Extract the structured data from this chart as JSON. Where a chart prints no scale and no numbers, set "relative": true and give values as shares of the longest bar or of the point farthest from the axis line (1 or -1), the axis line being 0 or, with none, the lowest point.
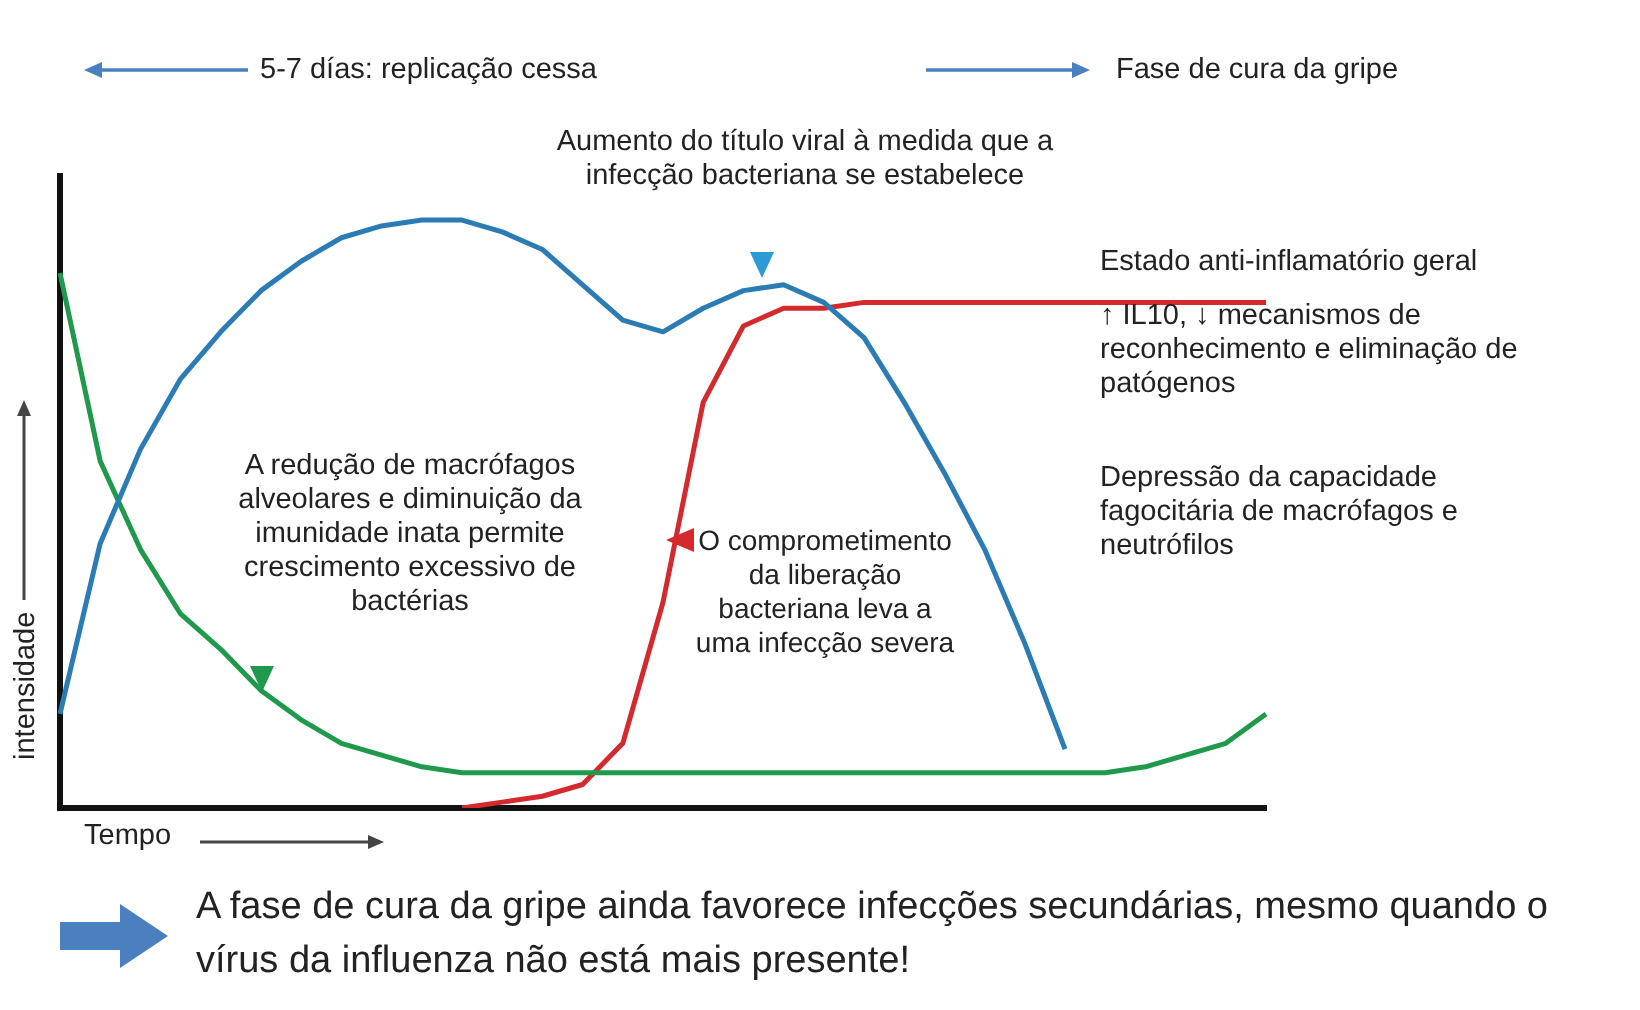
{
  "chart_data": {
    "type": "line",
    "relative": true,
    "xlabel": "Tempo",
    "ylabel": "intensidade",
    "grid": false,
    "legend": false,
    "tick_labels": false,
    "marker": "none",
    "line_style": "solid",
    "categories": [
      null,
      null,
      null,
      null,
      null,
      null,
      null,
      null,
      null,
      null,
      null,
      null,
      null,
      null,
      null,
      null,
      null,
      null,
      null,
      null,
      null,
      null,
      null,
      null,
      null,
      null,
      null,
      null,
      null,
      null,
      null
    ],
    "series": [
      {
        "color": "#2b7bb5",
        "values": [
          0.16,
          0.45,
          0.61,
          0.73,
          0.81,
          0.88,
          0.93,
          0.97,
          0.99,
          1,
          1,
          0.98,
          0.95,
          0.89,
          0.83,
          0.81,
          0.85,
          0.88,
          0.89,
          0.86,
          0.8,
          0.69,
          0.57,
          0.44,
          0.28,
          0.1,
          null,
          null,
          null,
          null,
          null
        ]
      },
      {
        "color": "#1f9a4c",
        "values": [
          0.91,
          0.59,
          0.44,
          0.33,
          0.27,
          0.2,
          0.15,
          0.11,
          0.09,
          0.07,
          0.06,
          0.06,
          0.06,
          0.06,
          0.06,
          0.06,
          0.06,
          0.06,
          0.06,
          0.06,
          0.06,
          0.06,
          0.06,
          0.06,
          0.06,
          0.06,
          0.06,
          0.07,
          0.09,
          0.11,
          0.16
        ]
      },
      {
        "color": "#d42a2e",
        "values": [
          null,
          null,
          null,
          null,
          null,
          null,
          null,
          null,
          null,
          null,
          0,
          0.01,
          0.02,
          0.04,
          0.11,
          0.35,
          0.69,
          0.82,
          0.85,
          0.85,
          0.86,
          0.86,
          0.86,
          0.86,
          0.86,
          0.86,
          0.86,
          0.86,
          0.86,
          0.86,
          0.86
        ]
      }
    ],
    "annotations": [
      "5-7 días: replicação cessa",
      "Fase de cura da gripe",
      "Aumento do título viral à medida que a infecção bacteriana se estabelece",
      "Estado anti-inflamatório geral",
      "↑ IL10, ↓ mecanismos de reconhecimento e eliminação de patógenos",
      "Depressão da capacidade fagocitária de macrófagos e neutrófilos",
      "A redução de macrófagos alveolares e diminuição da imunidade inata permite crescimento excessivo de bactérias",
      "O comprometimento da liberação bacteriana leva a uma infecção severa",
      "A fase de cura da gripe ainda favorece infecções secundárias, mesmo quando o vírus da influenza não está mais presente!"
    ]
  }
}
